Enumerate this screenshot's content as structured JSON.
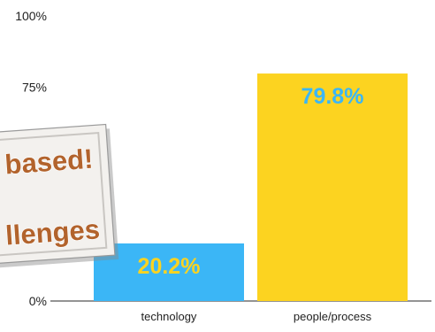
{
  "chart_data": {
    "type": "bar",
    "categories": [
      "technology",
      "people/process"
    ],
    "values": [
      20.2,
      79.8
    ],
    "value_labels": [
      "20.2%",
      "79.8%"
    ],
    "bar_colors": [
      "#3bb6f6",
      "#fcd320"
    ],
    "value_label_colors": [
      "#fcd320",
      "#3bb6f6"
    ],
    "y_ticks": [
      0,
      75,
      100
    ],
    "y_tick_labels": [
      "0%",
      "75%",
      "100%"
    ],
    "ylim": [
      0,
      100
    ],
    "grid": false,
    "title": "",
    "xlabel": "",
    "ylabel": ""
  },
  "sticky_note": {
    "line1": "based!",
    "line2": "llenges",
    "text_color": "#b2632c"
  }
}
